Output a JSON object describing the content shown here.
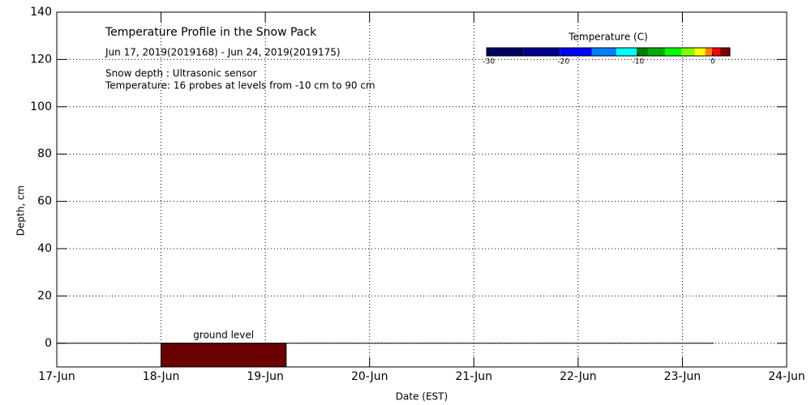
{
  "chart_data": {
    "type": "heatmap",
    "title": "Temperature Profile in the Snow Pack",
    "subtitle": "Jun 17, 2019(2019168) - Jun 24, 2019(2019175)",
    "notes": [
      "Snow depth : Ultrasonic sensor",
      "Temperature: 16 probes at levels from -10 cm to 90 cm"
    ],
    "x_label": "Date (EST)",
    "y_label": "Depth, cm",
    "xlim": [
      0,
      7
    ],
    "xticks": [
      {
        "value": 0,
        "label": "17-Jun"
      },
      {
        "value": 1,
        "label": "18-Jun"
      },
      {
        "value": 2,
        "label": "19-Jun"
      },
      {
        "value": 3,
        "label": "20-Jun"
      },
      {
        "value": 4,
        "label": "21-Jun"
      },
      {
        "value": 5,
        "label": "22-Jun"
      },
      {
        "value": 6,
        "label": "23-Jun"
      },
      {
        "value": 7,
        "label": "24-Jun"
      }
    ],
    "ylim": [
      -10,
      140
    ],
    "yticks": [
      0,
      20,
      40,
      60,
      80,
      100,
      120,
      140
    ],
    "grid": true,
    "cells": [
      {
        "x": [
          1,
          2.2
        ],
        "y": [
          0,
          -10
        ],
        "temperature": 1.5,
        "color": "#6b0000"
      }
    ],
    "ground_line": {
      "label": "ground level",
      "x": [
        0,
        6.3
      ],
      "y": 0
    },
    "colorbar": {
      "title": "Temperature (C)",
      "bounds": [
        -30.3,
        -25.4,
        -20.5,
        -16.2,
        -12.9,
        -10.2,
        -8.6,
        -6.4,
        -4.2,
        -2.4,
        -1.0,
        -0.1,
        1.0,
        2.3
      ],
      "colors": [
        "#000060",
        "#00008b",
        "#0000ff",
        "#0080ff",
        "#00ffff",
        "#008000",
        "#00b000",
        "#00ff00",
        "#80ff00",
        "#ffff00",
        "#ff8000",
        "#ff0000",
        "#800000"
      ],
      "ticks": [
        -30,
        -20,
        -10,
        0
      ]
    }
  }
}
